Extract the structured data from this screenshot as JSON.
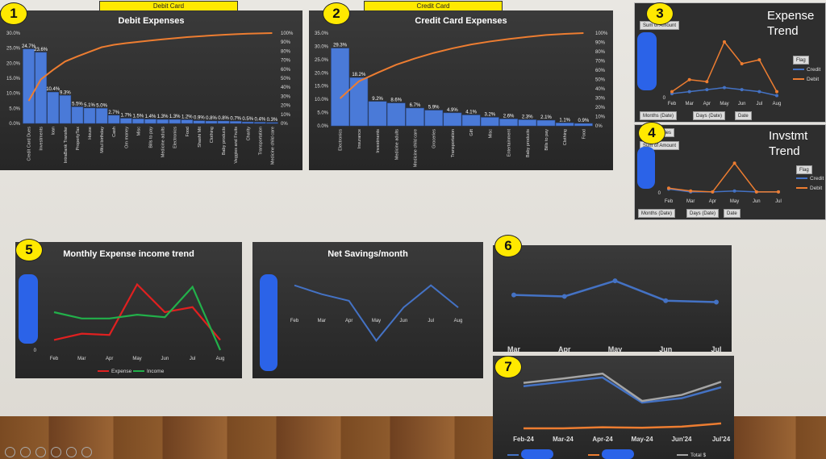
{
  "badges": [
    "1",
    "2",
    "3",
    "4",
    "5",
    "6",
    "7"
  ],
  "tags": {
    "debit": "Debit Card",
    "credit": "Credit Card"
  },
  "side_titles": {
    "expense": "Expense\nTrend",
    "invst": "Invstmt\nTrend"
  },
  "pivot": {
    "sum_label": "Sum of Amount",
    "flag_label": "Flag",
    "filters": [
      "Months (Date)",
      "Days (Date)",
      "Date"
    ],
    "series_label": "Series"
  },
  "colors": {
    "bar": "#4a7ad8",
    "orange": "#ed7d31",
    "blue": "#4472c4",
    "red": "#e02020",
    "green": "#22b04a",
    "grey": "#a5a5a5"
  },
  "chart_data": [
    {
      "id": "debit",
      "type": "bar",
      "title": "Debit Expenses",
      "categories": [
        "Credit Card Dues",
        "Investments",
        "loan",
        "IntraBank Transfer",
        "PropertyTax",
        "House",
        "Mitul birthday",
        "Cash",
        "Om money",
        "Misc",
        "Bills to pay",
        "Medicine adults",
        "Electronics",
        "Food",
        "Shashi Mit",
        "Clothing",
        "Baby products",
        "Veggies and Fruits",
        "Charity",
        "Transportation",
        "Medicine child care"
      ],
      "values": [
        24.7,
        23.6,
        10.4,
        9.3,
        5.5,
        5.1,
        5.0,
        2.7,
        1.7,
        1.5,
        1.4,
        1.3,
        1.3,
        1.2,
        0.9,
        0.8,
        0.8,
        0.7,
        0.5,
        0.4,
        0.3
      ],
      "data_labels": [
        "24.7%",
        "23.6%",
        "10.4%",
        "9.3%",
        "5.5%",
        "5.1%",
        "5.0%",
        "2.7%",
        "1.7%",
        "1.5%",
        "1.4%",
        "1.3%",
        "1.3%",
        "1.2%",
        "0.9%",
        "0.8%",
        "0.8%",
        "0.7%",
        "0.5%",
        "0.4%",
        "0.3%"
      ],
      "y_ticks": [
        "0.0%",
        "5.0%",
        "10.0%",
        "15.0%",
        "20.0%",
        "25.0%",
        "30.0%"
      ],
      "y2_ticks": [
        "0%",
        "10%",
        "20%",
        "30%",
        "40%",
        "50%",
        "60%",
        "70%",
        "80%",
        "90%",
        "100%"
      ],
      "ylim": [
        0,
        30
      ],
      "y2lim": [
        0,
        100
      ],
      "cumulative": true,
      "grid": false
    },
    {
      "id": "credit",
      "type": "bar",
      "title": "Credit Card Expenses",
      "categories": [
        "Electronics",
        "Insurance",
        "Investments",
        "Medicine adults",
        "Medicine child care",
        "Groceries",
        "Transportation",
        "Gift",
        "Misc",
        "Entertainment",
        "Baby products",
        "Bills to pay",
        "Clothing",
        "Food"
      ],
      "values": [
        29.3,
        18.2,
        9.2,
        8.6,
        6.7,
        5.9,
        4.9,
        4.1,
        3.2,
        2.6,
        2.3,
        2.1,
        1.1,
        0.9
      ],
      "data_labels": [
        "29.3%",
        "18.2%",
        "9.2%",
        "8.6%",
        "6.7%",
        "5.9%",
        "4.9%",
        "4.1%",
        "3.2%",
        "2.6%",
        "2.3%",
        "2.1%",
        "1.1%",
        "0.9%"
      ],
      "y_ticks": [
        "0.0%",
        "5.0%",
        "10.0%",
        "15.0%",
        "20.0%",
        "25.0%",
        "30.0%",
        "35.0%"
      ],
      "y2_ticks": [
        "0%",
        "10%",
        "20%",
        "30%",
        "40%",
        "50%",
        "60%",
        "70%",
        "80%",
        "90%",
        "100%"
      ],
      "ylim": [
        0,
        35
      ],
      "y2lim": [
        0,
        100
      ],
      "cumulative": true,
      "grid": false
    },
    {
      "id": "expense_trend",
      "type": "line",
      "categories": [
        "Feb",
        "Mar",
        "Apr",
        "May",
        "Jun",
        "Jul",
        "Aug"
      ],
      "series": [
        {
          "name": "Credit",
          "values": [
            2,
            3,
            4,
            5,
            4,
            3,
            1
          ]
        },
        {
          "name": "Debit",
          "values": [
            3,
            9,
            8,
            28,
            17,
            19,
            3
          ]
        }
      ],
      "ylim": [
        0,
        32
      ],
      "y_ticks": [
        "0"
      ]
    },
    {
      "id": "invst_trend",
      "type": "line",
      "categories": [
        "Feb",
        "Mar",
        "Apr",
        "May",
        "Jun",
        "Jul"
      ],
      "series": [
        {
          "name": "Credit",
          "values": [
            4,
            1,
            1,
            2,
            1,
            1
          ]
        },
        {
          "name": "Debit",
          "values": [
            5,
            2,
            1,
            32,
            1,
            1
          ]
        }
      ],
      "ylim": [
        0,
        40
      ],
      "y_ticks": [
        "0"
      ]
    },
    {
      "id": "monthly",
      "type": "line",
      "title": "Monthly Expense income trend",
      "categories": [
        "Feb",
        "Mar",
        "Apr",
        "May",
        "Jun",
        "Jul",
        "Aug"
      ],
      "series": [
        {
          "name": "Expense",
          "values": [
            4,
            6.5,
            6,
            26,
            15,
            17,
            4
          ]
        },
        {
          "name": "Income",
          "values": [
            15,
            12.5,
            12.5,
            14,
            13,
            25,
            0
          ]
        }
      ],
      "ylim": [
        0,
        30
      ],
      "y_ticks": [
        "0",
        "5"
      ],
      "legend": "bottom"
    },
    {
      "id": "savings",
      "type": "line",
      "title": "Net Savings/month",
      "categories": [
        "Feb",
        "Mar",
        "Apr",
        "May",
        "Jun",
        "Jul",
        "Aug"
      ],
      "series": [
        {
          "name": "",
          "values": [
            10,
            6,
            3,
            -15,
            0,
            10,
            0
          ]
        }
      ],
      "ylim": [
        -20,
        15
      ],
      "y_ticks": [
        "0"
      ]
    },
    {
      "id": "chart6",
      "type": "line",
      "categories": [
        "Mar",
        "Apr",
        "May",
        "Jun",
        "Jul"
      ],
      "series": [
        {
          "name": "",
          "values": [
            62,
            61,
            72,
            58,
            57
          ]
        }
      ],
      "ylim": [
        30,
        80
      ]
    },
    {
      "id": "chart7",
      "type": "line",
      "categories": [
        "Feb-24",
        "Mar-24",
        "Apr-24",
        "May-24",
        "Jun'24",
        "Jul'24"
      ],
      "series": [
        {
          "name": "Balance",
          "values": [
            80,
            88,
            96,
            50,
            58,
            78
          ]
        },
        {
          "name": "Balance",
          "values": [
            3,
            3,
            5,
            4,
            6,
            12
          ]
        },
        {
          "name": "Total $",
          "values": [
            86,
            94,
            103,
            53,
            64,
            88
          ]
        }
      ],
      "ylim": [
        0,
        115
      ],
      "legend": "bottom"
    }
  ]
}
